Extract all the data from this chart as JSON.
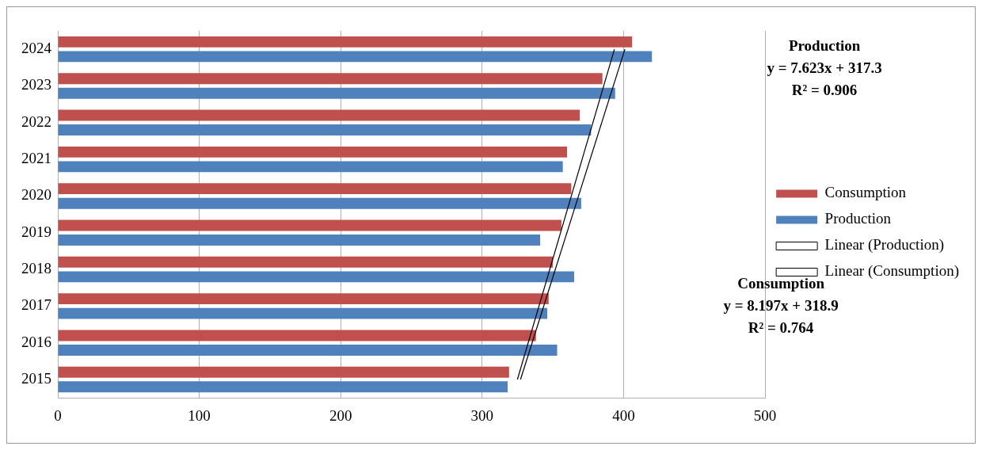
{
  "chart_data": {
    "type": "bar",
    "orientation": "horizontal",
    "categories": [
      "2024",
      "2023",
      "2022",
      "2021",
      "2020",
      "2019",
      "2018",
      "2017",
      "2016",
      "2015"
    ],
    "series": [
      {
        "name": "Consumption",
        "color": "#c0504d",
        "values": [
          406,
          385,
          369,
          360,
          363,
          356,
          350,
          347,
          338,
          319
        ]
      },
      {
        "name": "Production",
        "color": "#4f81bd",
        "values": [
          420,
          394,
          377,
          357,
          370,
          341,
          365,
          346,
          353,
          318
        ]
      },
      {
        "name": "Linear (Production)",
        "type": "line",
        "color": "#000000",
        "values": [
          393.5,
          null,
          null,
          null,
          null,
          null,
          null,
          null,
          null,
          324.9
        ]
      },
      {
        "name": "Linear (Consumption)",
        "type": "line",
        "color": "#000000",
        "values": [
          400.9,
          null,
          null,
          null,
          null,
          null,
          null,
          null,
          null,
          327.1
        ]
      }
    ],
    "xlim": [
      0,
      500
    ],
    "xticks": [
      0,
      100,
      200,
      300,
      400,
      500
    ],
    "grid": "x",
    "legend": "right",
    "marker": "none",
    "line_style": "solid",
    "annotations": [
      "Production\ny = 7.623x + 317.3\nR² = 0.906",
      "Consumption\ny = 8.197x + 318.9\nR² = 0.764"
    ]
  }
}
